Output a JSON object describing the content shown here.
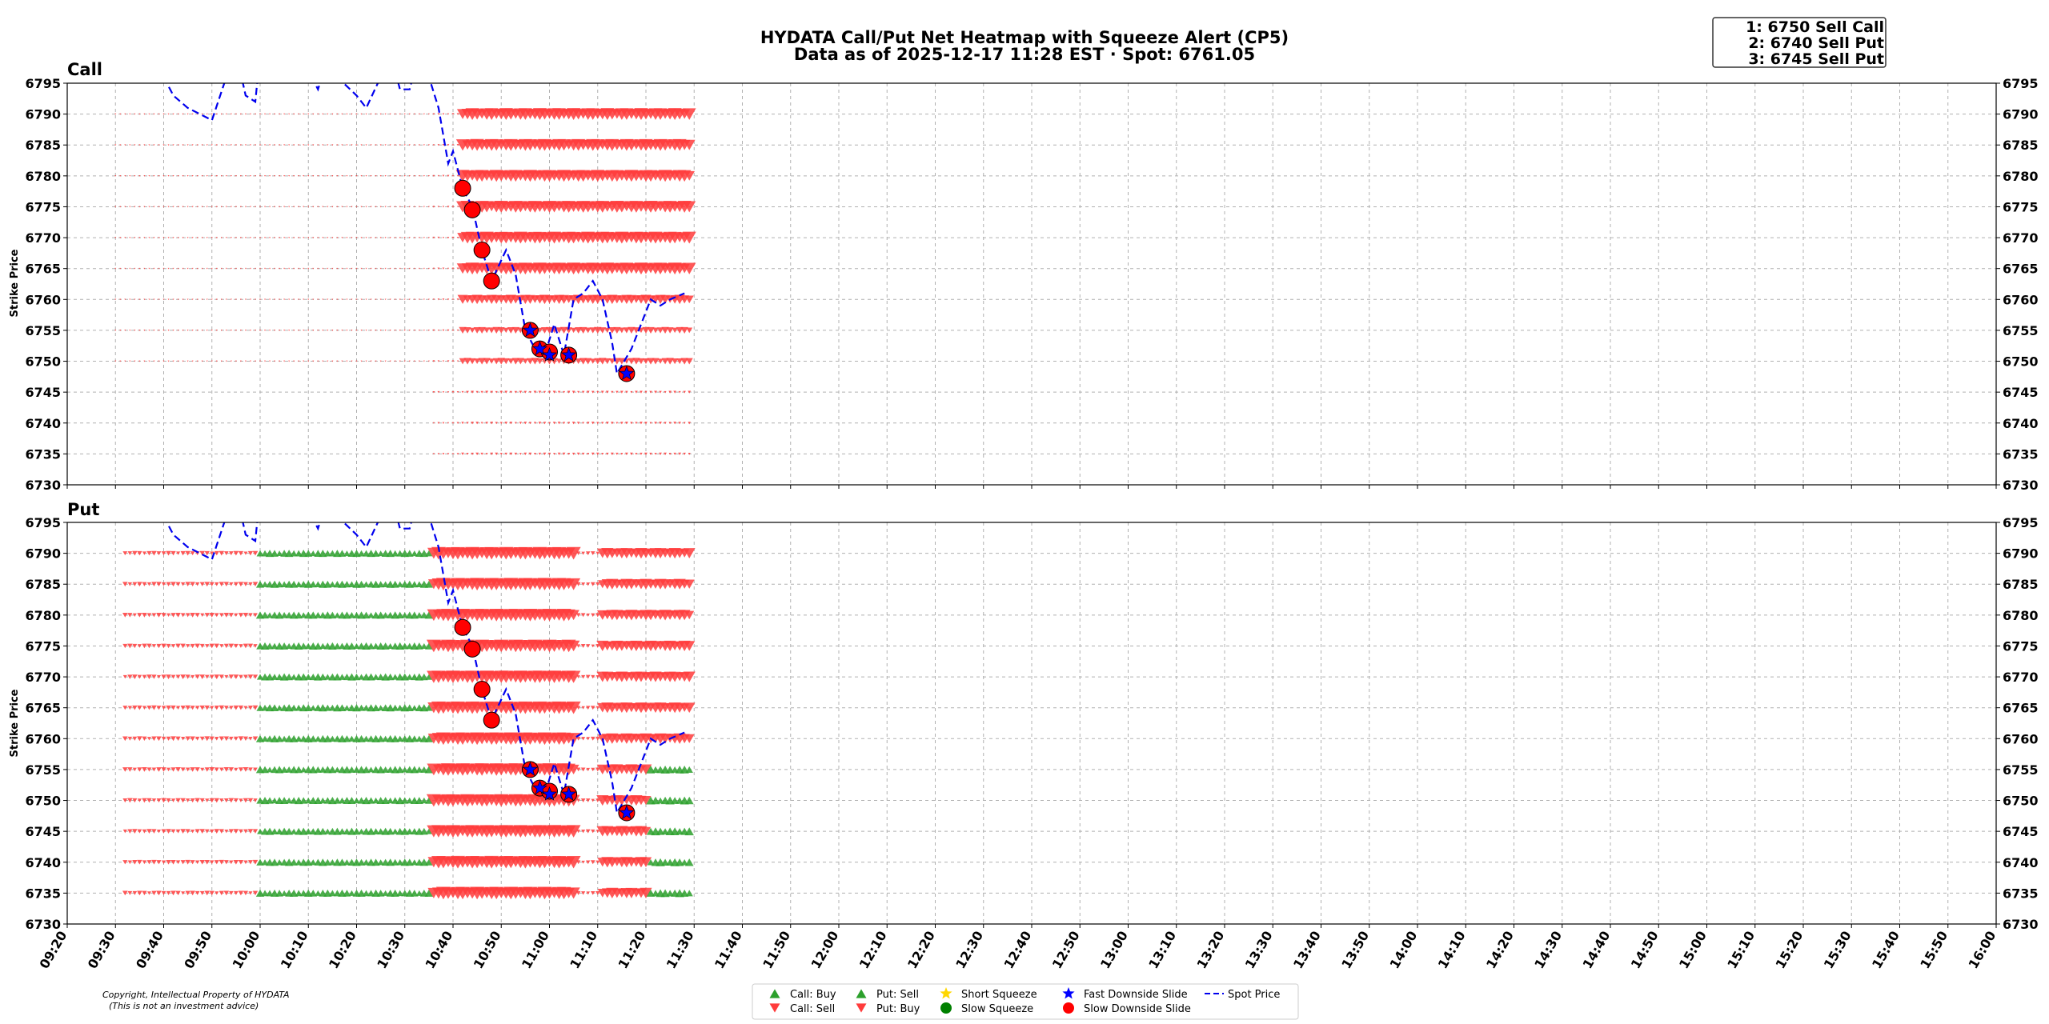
{
  "title_line1": "HYDATA Call/Put Net Heatmap with Squeeze Alert (CP5)",
  "title_line2": "Data as of 2025-12-17 11:28 EST · Spot: 6761.05",
  "alerts_box": [
    "1: 6750 Sell Call",
    "2: 6740 Sell Put",
    "3: 6745 Sell Put"
  ],
  "copyright_line1": "Copyright, Intellectual Property of HYDATA",
  "copyright_line2": "(This is not an investment advice)",
  "colors": {
    "buy": "#2ca02c",
    "sell": "#ff3b3b",
    "spot": "#0000ee",
    "squeeze_short": "#ffd700",
    "squeeze_slow": "#008000",
    "slide_fast": "#0000ff",
    "slide_slow": "#ff0000"
  },
  "legend": [
    {
      "label": "Call: Buy",
      "marker": "triangle-up",
      "color": "#2ca02c"
    },
    {
      "label": "Call: Sell",
      "marker": "triangle-down",
      "color": "#ff3b3b"
    },
    {
      "label": "Put: Sell",
      "marker": "triangle-up",
      "color": "#2ca02c"
    },
    {
      "label": "Put: Buy",
      "marker": "triangle-down",
      "color": "#ff3b3b"
    },
    {
      "label": "Short Squeeze",
      "marker": "star",
      "color": "#ffd700"
    },
    {
      "label": "Slow Squeeze",
      "marker": "circle",
      "color": "#008000"
    },
    {
      "label": "Fast Downside Slide",
      "marker": "star",
      "color": "#0000ff"
    },
    {
      "label": "Slow Downside Slide",
      "marker": "circle",
      "color": "#ff0000"
    },
    {
      "label": "Spot Price",
      "marker": "dash",
      "color": "#0000ee"
    }
  ],
  "chart_data": {
    "type": "heatmap",
    "x_type": "time",
    "xlim": [
      "09:20",
      "16:00"
    ],
    "x_ticks": [
      "09:20",
      "09:30",
      "09:40",
      "09:50",
      "10:00",
      "10:10",
      "10:20",
      "10:30",
      "10:40",
      "10:50",
      "11:00",
      "11:10",
      "11:20",
      "11:30",
      "11:40",
      "11:50",
      "12:00",
      "12:10",
      "12:20",
      "12:30",
      "12:40",
      "12:50",
      "13:00",
      "13:10",
      "13:20",
      "13:30",
      "13:40",
      "13:50",
      "14:00",
      "14:10",
      "14:20",
      "14:30",
      "14:40",
      "14:50",
      "15:00",
      "15:10",
      "15:20",
      "15:30",
      "15:40",
      "15:50",
      "16:00"
    ],
    "ylim": [
      6730,
      6795
    ],
    "y_ticks": [
      6795,
      6790,
      6785,
      6780,
      6775,
      6770,
      6765,
      6760,
      6755,
      6750,
      6745,
      6740,
      6735,
      6730
    ],
    "ylabel": "Strike Price",
    "spot_series": [
      [
        "09:40",
        6796
      ],
      [
        "09:42",
        6793
      ],
      [
        "09:45",
        6791
      ],
      [
        "09:50",
        6789
      ],
      [
        "09:53",
        6796
      ],
      [
        "09:55",
        6800
      ],
      [
        "09:57",
        6793
      ],
      [
        "09:59",
        6792
      ],
      [
        "10:00",
        6800
      ],
      [
        "10:10",
        6797
      ],
      [
        "10:12",
        6794
      ],
      [
        "10:14",
        6799
      ],
      [
        "10:16",
        6796
      ],
      [
        "10:20",
        6793
      ],
      [
        "10:22",
        6791
      ],
      [
        "10:25",
        6796
      ],
      [
        "10:27",
        6800
      ],
      [
        "10:29",
        6794
      ],
      [
        "10:31",
        6794
      ],
      [
        "10:33",
        6800
      ],
      [
        "10:35",
        6796
      ],
      [
        "10:37",
        6791
      ],
      [
        "10:39",
        6782
      ],
      [
        "10:40",
        6784
      ],
      [
        "10:42",
        6778
      ],
      [
        "10:44",
        6775
      ],
      [
        "10:46",
        6768
      ],
      [
        "10:48",
        6763
      ],
      [
        "10:51",
        6768
      ],
      [
        "10:53",
        6764
      ],
      [
        "10:55",
        6755
      ],
      [
        "10:57",
        6752
      ],
      [
        "10:59",
        6751
      ],
      [
        "11:01",
        6756
      ],
      [
        "11:03",
        6751
      ],
      [
        "11:05",
        6760
      ],
      [
        "11:07",
        6761
      ],
      [
        "11:09",
        6763
      ],
      [
        "11:11",
        6760
      ],
      [
        "11:13",
        6753
      ],
      [
        "11:14",
        6748
      ],
      [
        "11:17",
        6752
      ],
      [
        "11:19",
        6756
      ],
      [
        "11:21",
        6760
      ],
      [
        "11:23",
        6759
      ],
      [
        "11:25",
        6760
      ],
      [
        "11:28",
        6761
      ]
    ],
    "slow_downside_slide": [
      [
        "10:42",
        6778
      ],
      [
        "10:44",
        6774.5
      ],
      [
        "10:46",
        6768
      ],
      [
        "10:48",
        6763
      ],
      [
        "10:56",
        6755
      ],
      [
        "10:58",
        6752
      ],
      [
        "11:00",
        6751.5
      ],
      [
        "11:04",
        6751
      ],
      [
        "11:16",
        6748
      ]
    ],
    "fast_downside_slide": [
      [
        "10:56",
        6755
      ],
      [
        "10:58",
        6752
      ],
      [
        "11:00",
        6751
      ],
      [
        "11:04",
        6751
      ],
      [
        "11:16",
        6748
      ]
    ],
    "panels": [
      {
        "name": "Call",
        "time_start": "09:30",
        "time_end": "11:29",
        "segments": [
          {
            "from": "09:30",
            "to": "10:35",
            "sign": -1,
            "size": 0.1,
            "strikes": [
              6790,
              6785,
              6780,
              6775,
              6770,
              6765,
              6760,
              6755,
              6750
            ]
          },
          {
            "from": "10:36",
            "to": "10:41",
            "sign": -1,
            "size": 0.15,
            "strikes": [
              6790,
              6785,
              6780,
              6775,
              6770,
              6765,
              6760,
              6755,
              6750,
              6745,
              6740,
              6735
            ]
          },
          {
            "from": "10:42",
            "to": "11:29",
            "sign": -1,
            "size": 0.9,
            "strikes": [
              6790,
              6785,
              6780,
              6775,
              6770,
              6765
            ]
          },
          {
            "from": "10:42",
            "to": "11:29",
            "sign": -1,
            "size": 0.7,
            "strikes": [
              6760
            ]
          },
          {
            "from": "10:42",
            "to": "11:29",
            "sign": -1,
            "size": 0.5,
            "strikes": [
              6755,
              6750
            ]
          },
          {
            "from": "10:42",
            "to": "11:29",
            "sign": -1,
            "size": 0.2,
            "strikes": [
              6745,
              6740,
              6735
            ]
          }
        ]
      },
      {
        "name": "Put",
        "time_start": "09:32",
        "time_end": "11:29",
        "segments": [
          {
            "from": "09:32",
            "to": "10:00",
            "sign": -1,
            "size": 0.35,
            "strikes": [
              6790,
              6785,
              6780,
              6775,
              6770,
              6765,
              6760,
              6755,
              6750,
              6745,
              6740,
              6735
            ]
          },
          {
            "from": "10:00",
            "to": "10:35",
            "sign": 1,
            "size": 0.55,
            "strikes": [
              6790,
              6785,
              6780,
              6775,
              6770,
              6765,
              6760,
              6755,
              6750,
              6745,
              6740,
              6735
            ]
          },
          {
            "from": "10:36",
            "to": "11:05",
            "sign": -1,
            "size": 0.95,
            "strikes": [
              6790,
              6785,
              6780,
              6775,
              6770,
              6765,
              6760,
              6755,
              6750,
              6745,
              6740,
              6735
            ]
          },
          {
            "from": "11:06",
            "to": "11:10",
            "sign": -1,
            "size": 0.3,
            "strikes": [
              6790,
              6785,
              6780,
              6775,
              6770,
              6765,
              6760,
              6755,
              6750,
              6745,
              6740,
              6735
            ]
          },
          {
            "from": "11:11",
            "to": "11:29",
            "sign": -1,
            "size": 0.8,
            "strikes": [
              6790,
              6785,
              6780,
              6775,
              6770,
              6765,
              6760
            ]
          },
          {
            "from": "11:11",
            "to": "11:20",
            "sign": -1,
            "size": 0.8,
            "strikes": [
              6755,
              6750,
              6745,
              6740,
              6735
            ]
          },
          {
            "from": "11:21",
            "to": "11:29",
            "sign": 1,
            "size": 0.6,
            "strikes": [
              6755,
              6750,
              6745,
              6740,
              6735
            ]
          }
        ]
      }
    ]
  }
}
